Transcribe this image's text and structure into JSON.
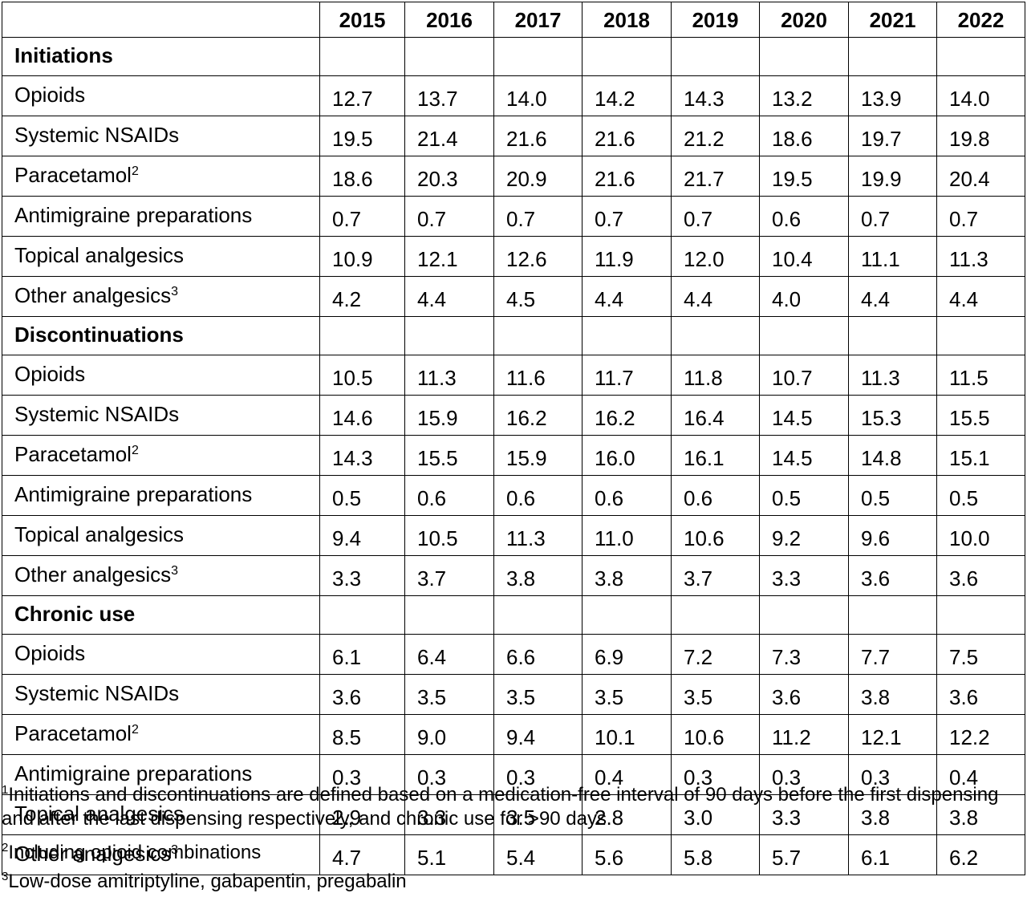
{
  "years": [
    "2015",
    "2016",
    "2017",
    "2018",
    "2019",
    "2020",
    "2021",
    "2022"
  ],
  "sections": [
    {
      "title": "Initiations",
      "rows": [
        {
          "label": "Opioids",
          "sup": "",
          "values": [
            "12.7",
            "13.7",
            "14.0",
            "14.2",
            "14.3",
            "13.2",
            "13.9",
            "14.0"
          ]
        },
        {
          "label": "Systemic NSAIDs",
          "sup": "",
          "values": [
            "19.5",
            "21.4",
            "21.6",
            "21.6",
            "21.2",
            "18.6",
            "19.7",
            "19.8"
          ]
        },
        {
          "label": "Paracetamol",
          "sup": "2",
          "values": [
            "18.6",
            "20.3",
            "20.9",
            "21.6",
            "21.7",
            "19.5",
            "19.9",
            "20.4"
          ]
        },
        {
          "label": "Antimigraine preparations",
          "sup": "",
          "values": [
            "0.7",
            "0.7",
            "0.7",
            "0.7",
            "0.7",
            "0.6",
            "0.7",
            "0.7"
          ]
        },
        {
          "label": "Topical analgesics",
          "sup": "",
          "values": [
            "10.9",
            "12.1",
            "12.6",
            "11.9",
            "12.0",
            "10.4",
            "11.1",
            "11.3"
          ]
        },
        {
          "label": "Other analgesics",
          "sup": "3",
          "values": [
            "4.2",
            "4.4",
            "4.5",
            "4.4",
            "4.4",
            "4.0",
            "4.4",
            "4.4"
          ]
        }
      ]
    },
    {
      "title": "Discontinuations",
      "rows": [
        {
          "label": "Opioids",
          "sup": "",
          "values": [
            "10.5",
            "11.3",
            "11.6",
            "11.7",
            "11.8",
            "10.7",
            "11.3",
            "11.5"
          ]
        },
        {
          "label": "Systemic NSAIDs",
          "sup": "",
          "values": [
            "14.6",
            "15.9",
            "16.2",
            "16.2",
            "16.4",
            "14.5",
            "15.3",
            "15.5"
          ]
        },
        {
          "label": "Paracetamol",
          "sup": "2",
          "values": [
            "14.3",
            "15.5",
            "15.9",
            "16.0",
            "16.1",
            "14.5",
            "14.8",
            "15.1"
          ]
        },
        {
          "label": "Antimigraine preparations",
          "sup": "",
          "values": [
            "0.5",
            "0.6",
            "0.6",
            "0.6",
            "0.6",
            "0.5",
            "0.5",
            "0.5"
          ]
        },
        {
          "label": "Topical analgesics",
          "sup": "",
          "values": [
            "9.4",
            "10.5",
            "11.3",
            "11.0",
            "10.6",
            "9.2",
            "9.6",
            "10.0"
          ]
        },
        {
          "label": "Other analgesics",
          "sup": "3",
          "values": [
            "3.3",
            "3.7",
            "3.8",
            "3.8",
            "3.7",
            "3.3",
            "3.6",
            "3.6"
          ]
        }
      ]
    },
    {
      "title": "Chronic use",
      "rows": [
        {
          "label": "Opioids",
          "sup": "",
          "values": [
            "6.1",
            "6.4",
            "6.6",
            "6.9",
            "7.2",
            "7.3",
            "7.7",
            "7.5"
          ]
        },
        {
          "label": "Systemic NSAIDs",
          "sup": "",
          "values": [
            "3.6",
            "3.5",
            "3.5",
            "3.5",
            "3.5",
            "3.6",
            "3.8",
            "3.6"
          ]
        },
        {
          "label": "Paracetamol",
          "sup": "2",
          "values": [
            "8.5",
            "9.0",
            "9.4",
            "10.1",
            "10.6",
            "11.2",
            "12.1",
            "12.2"
          ]
        },
        {
          "label": "Antimigraine preparations",
          "sup": "",
          "values": [
            "0.3",
            "0.3",
            "0.3",
            "0.4",
            "0.3",
            "0.3",
            "0.3",
            "0.4"
          ]
        },
        {
          "label": "Topical analgesics",
          "sup": "",
          "values": [
            "2.9",
            "3.3",
            "3.5",
            "2.8",
            "3.0",
            "3.3",
            "3.8",
            "3.8"
          ]
        },
        {
          "label": "Other analgesics",
          "sup": "3",
          "values": [
            "4.7",
            "5.1",
            "5.4",
            "5.6",
            "5.8",
            "5.7",
            "6.1",
            "6.2"
          ]
        }
      ]
    }
  ],
  "footnotes": [
    {
      "mark": "1",
      "text": "Initiations and discontinuations are defined based on a medication-free interval of 90 days before the first dispensing and after the last dispensing respectively, and chronic use for >90 days"
    },
    {
      "mark": "2",
      "text": "Including opioid combinations"
    },
    {
      "mark": "3",
      "text": "Low-dose amitriptyline, gabapentin, pregabalin"
    }
  ]
}
